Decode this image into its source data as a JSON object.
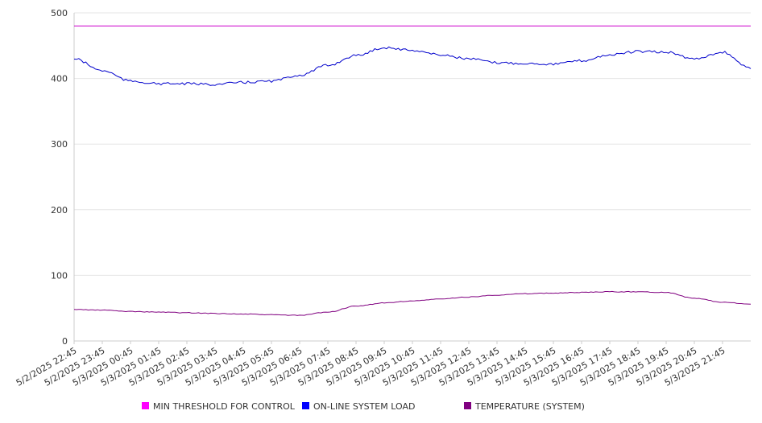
{
  "chart_data": {
    "type": "line",
    "title": "",
    "xlabel": "",
    "ylabel": "",
    "ylim": [
      0,
      500
    ],
    "yticks": [
      0,
      100,
      200,
      300,
      400,
      500
    ],
    "grid": "horizontal",
    "legend_placement": "bottom",
    "x_tick_labels": [
      "5/2/2025 22:45",
      "5/2/2025 23:45",
      "5/3/2025 00:45",
      "5/3/2025 01:45",
      "5/3/2025 02:45",
      "5/3/2025 03:45",
      "5/3/2025 04:45",
      "5/3/2025 05:45",
      "5/3/2025 06:45",
      "5/3/2025 07:45",
      "5/3/2025 08:45",
      "5/3/2025 09:45",
      "5/3/2025 10:45",
      "5/3/2025 11:45",
      "5/3/2025 12:45",
      "5/3/2025 13:45",
      "5/3/2025 14:45",
      "5/3/2025 15:45",
      "5/3/2025 16:45",
      "5/3/2025 17:45",
      "5/3/2025 18:45",
      "5/3/2025 19:45",
      "5/3/2025 20:45",
      "5/3/2025 21:45"
    ],
    "x_start": "5/2/2025 22:45",
    "x_end": "5/3/2025 22:45",
    "series": [
      {
        "name": "MIN THRESHOLD FOR CONTROL",
        "color": "#cc00cc",
        "legend_color": "#ff00ff",
        "values": [
          480,
          480,
          480,
          480,
          480,
          480,
          480,
          480,
          480,
          480,
          480,
          480,
          480,
          480,
          480,
          480,
          480,
          480,
          480,
          480,
          480,
          480,
          480,
          480,
          480
        ]
      },
      {
        "name": "ON-LINE SYSTEM LOAD",
        "color": "#0000cc",
        "legend_color": "#0000ff",
        "values": [
          430,
          412,
          396,
          392,
          392,
          391,
          394,
          396,
          405,
          420,
          435,
          447,
          443,
          436,
          430,
          424,
          423,
          422,
          427,
          436,
          441,
          440,
          430,
          440,
          415
        ]
      },
      {
        "name": "TEMPERATURE (SYSTEM)",
        "color": "#800080",
        "legend_color": "#800080",
        "values": [
          48,
          47,
          45,
          44,
          43,
          42,
          41,
          40,
          39,
          44,
          53,
          58,
          61,
          64,
          67,
          70,
          72,
          73,
          74,
          75,
          75,
          74,
          65,
          59,
          56
        ]
      }
    ]
  }
}
